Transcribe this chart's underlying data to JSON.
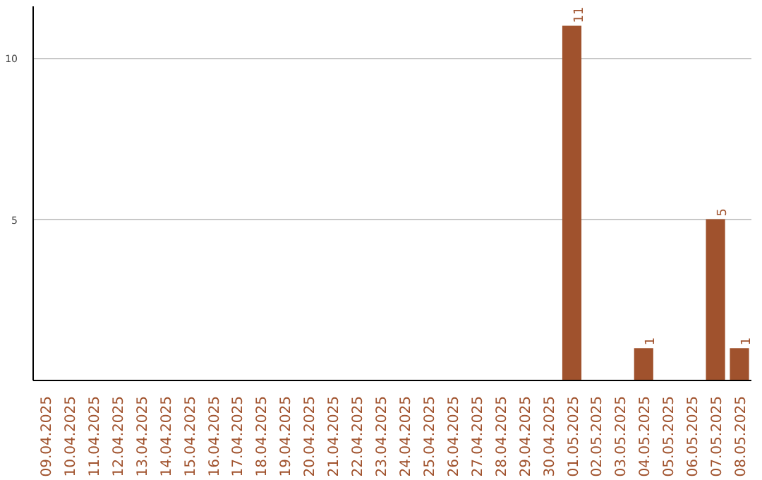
{
  "chart_data": {
    "type": "bar",
    "categories": [
      "09.04.2025",
      "10.04.2025",
      "11.04.2025",
      "12.04.2025",
      "13.04.2025",
      "14.04.2025",
      "15.04.2025",
      "16.04.2025",
      "17.04.2025",
      "18.04.2025",
      "19.04.2025",
      "20.04.2025",
      "21.04.2025",
      "22.04.2025",
      "23.04.2025",
      "24.04.2025",
      "25.04.2025",
      "26.04.2025",
      "27.04.2025",
      "28.04.2025",
      "29.04.2025",
      "30.04.2025",
      "01.05.2025",
      "02.05.2025",
      "03.05.2025",
      "04.05.2025",
      "05.05.2025",
      "06.05.2025",
      "07.05.2025",
      "08.05.2025"
    ],
    "values": [
      0,
      0,
      0,
      0,
      0,
      0,
      0,
      0,
      0,
      0,
      0,
      0,
      0,
      0,
      0,
      0,
      0,
      0,
      0,
      0,
      0,
      0,
      11,
      0,
      0,
      1,
      0,
      0,
      5,
      1
    ],
    "value_labels": [
      null,
      null,
      null,
      null,
      null,
      null,
      null,
      null,
      null,
      null,
      null,
      null,
      null,
      null,
      null,
      null,
      null,
      null,
      null,
      null,
      null,
      null,
      "11",
      null,
      null,
      "1",
      null,
      null,
      "5",
      "1"
    ],
    "color": "#a0522d",
    "ylim": [
      0,
      11.6
    ],
    "yticks": [
      5,
      10
    ],
    "grid": "y"
  }
}
